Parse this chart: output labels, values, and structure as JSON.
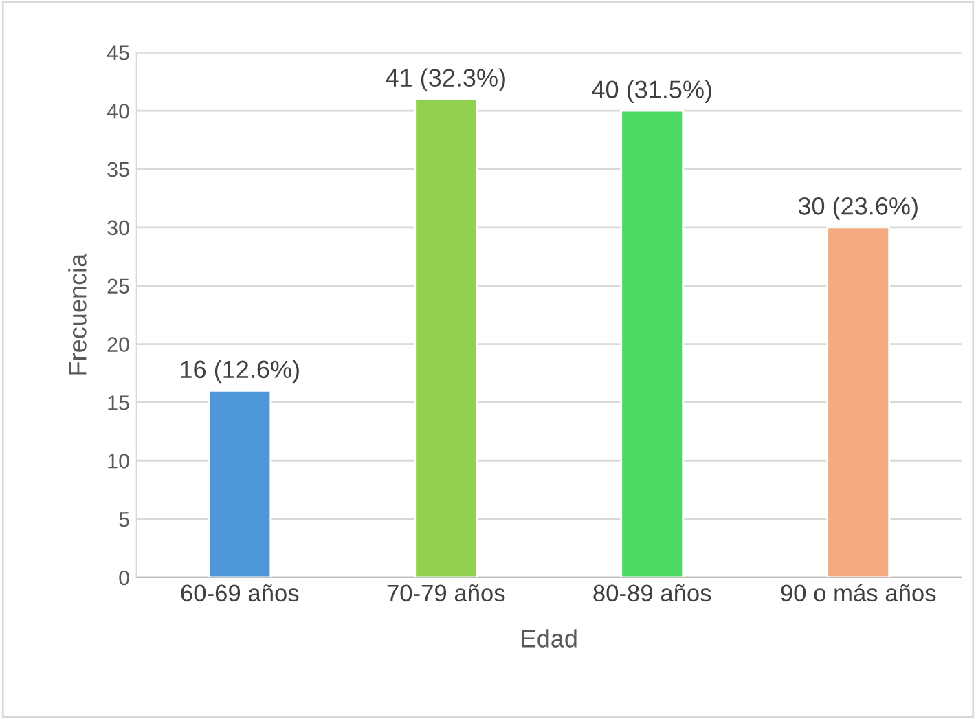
{
  "chart_data": {
    "type": "bar",
    "xlabel": "Edad",
    "ylabel": "Frecuencia",
    "categories": [
      "60-69 años",
      "70-79 años",
      "80-89 años",
      "90 o más años"
    ],
    "values": [
      16,
      41,
      40,
      30
    ],
    "colors": [
      "#4f97db",
      "#92d050",
      "#4cd964",
      "#f4ab80"
    ],
    "value_labels": [
      "16 (12.6%)",
      "41 (32.3%)",
      "40 (31.5%)",
      "30 (23.6%)"
    ],
    "ylim": [
      0,
      45
    ],
    "yticks": [
      0,
      5,
      10,
      15,
      20,
      25,
      30,
      35,
      40,
      45
    ],
    "grid": "y",
    "legend": false
  }
}
